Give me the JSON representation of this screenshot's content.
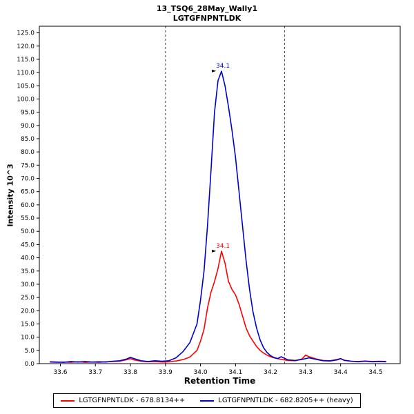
{
  "chart_data": {
    "type": "line",
    "title": "13_TSQ6_28May_Wally1",
    "subtitle": "LGTGFNPNTLDK",
    "xlabel": "Retention Time",
    "ylabel": "Intensity 10^3",
    "xlim": [
      33.54,
      34.57
    ],
    "ylim": [
      0,
      127.5
    ],
    "x_ticks": [
      33.6,
      33.7,
      33.8,
      33.9,
      34.0,
      34.1,
      34.2,
      34.3,
      34.4,
      34.5
    ],
    "y_ticks": [
      0,
      5,
      10,
      15,
      20,
      25,
      30,
      35,
      40,
      45,
      50,
      55,
      60,
      65,
      70,
      75,
      80,
      85,
      90,
      95,
      100,
      105,
      110,
      115,
      120,
      125
    ],
    "grid": false,
    "legend_position": "bottom",
    "peak_boundaries": [
      33.9,
      34.24
    ],
    "boundary_color": "#444444",
    "series": [
      {
        "name": "LGTGFNPNTLDK - 678.8134++",
        "color": "#ff0000",
        "annotation": {
          "label": "34.1",
          "x": 34.06,
          "y": 42.5
        },
        "points": [
          [
            33.57,
            0.6
          ],
          [
            33.59,
            0.5
          ],
          [
            33.61,
            0.6
          ],
          [
            33.63,
            0.5
          ],
          [
            33.65,
            0.7
          ],
          [
            33.67,
            0.5
          ],
          [
            33.69,
            0.6
          ],
          [
            33.71,
            0.5
          ],
          [
            33.73,
            0.7
          ],
          [
            33.75,
            0.8
          ],
          [
            33.77,
            0.9
          ],
          [
            33.79,
            1.5
          ],
          [
            33.8,
            1.9
          ],
          [
            33.81,
            1.4
          ],
          [
            33.83,
            0.9
          ],
          [
            33.85,
            0.7
          ],
          [
            33.87,
            0.8
          ],
          [
            33.89,
            0.6
          ],
          [
            33.91,
            0.7
          ],
          [
            33.93,
            1.0
          ],
          [
            33.95,
            1.5
          ],
          [
            33.97,
            2.5
          ],
          [
            33.99,
            5.0
          ],
          [
            34.0,
            8.5
          ],
          [
            34.01,
            13.0
          ],
          [
            34.02,
            21.0
          ],
          [
            34.03,
            27.0
          ],
          [
            34.04,
            31.0
          ],
          [
            34.05,
            36.0
          ],
          [
            34.06,
            42.5
          ],
          [
            34.07,
            38.0
          ],
          [
            34.08,
            31.0
          ],
          [
            34.09,
            28.0
          ],
          [
            34.1,
            26.0
          ],
          [
            34.11,
            22.5
          ],
          [
            34.12,
            18.0
          ],
          [
            34.13,
            13.5
          ],
          [
            34.14,
            10.5
          ],
          [
            34.15,
            8.5
          ],
          [
            34.16,
            6.5
          ],
          [
            34.17,
            5.0
          ],
          [
            34.18,
            4.0
          ],
          [
            34.19,
            3.2
          ],
          [
            34.2,
            2.6
          ],
          [
            34.21,
            2.2
          ],
          [
            34.22,
            1.9
          ],
          [
            34.23,
            1.6
          ],
          [
            34.24,
            1.4
          ],
          [
            34.25,
            1.2
          ],
          [
            34.27,
            1.1
          ],
          [
            34.29,
            1.8
          ],
          [
            34.3,
            3.2
          ],
          [
            34.31,
            2.6
          ],
          [
            34.33,
            1.8
          ],
          [
            34.35,
            1.2
          ],
          [
            34.37,
            1.1
          ],
          [
            34.39,
            1.6
          ],
          [
            34.4,
            1.9
          ],
          [
            34.41,
            1.2
          ],
          [
            34.43,
            0.9
          ],
          [
            34.45,
            0.8
          ],
          [
            34.47,
            1.0
          ],
          [
            34.49,
            0.8
          ],
          [
            34.51,
            0.9
          ],
          [
            34.53,
            0.8
          ]
        ]
      },
      {
        "name": "LGTGFNPNTLDK - 682.8205++ (heavy)",
        "color": "#0000cd",
        "annotation": {
          "label": "34.1",
          "x": 34.06,
          "y": 110.5
        },
        "points": [
          [
            33.57,
            0.7
          ],
          [
            33.59,
            0.6
          ],
          [
            33.61,
            0.5
          ],
          [
            33.63,
            0.8
          ],
          [
            33.65,
            0.6
          ],
          [
            33.67,
            0.8
          ],
          [
            33.69,
            0.6
          ],
          [
            33.71,
            0.7
          ],
          [
            33.73,
            0.6
          ],
          [
            33.75,
            0.9
          ],
          [
            33.77,
            1.1
          ],
          [
            33.79,
            1.8
          ],
          [
            33.8,
            2.4
          ],
          [
            33.81,
            1.9
          ],
          [
            33.83,
            1.1
          ],
          [
            33.85,
            0.8
          ],
          [
            33.87,
            1.1
          ],
          [
            33.89,
            0.9
          ],
          [
            33.91,
            1.1
          ],
          [
            33.93,
            2.2
          ],
          [
            33.95,
            4.5
          ],
          [
            33.97,
            8.0
          ],
          [
            33.99,
            15.0
          ],
          [
            34.0,
            24.0
          ],
          [
            34.01,
            35.0
          ],
          [
            34.02,
            52.0
          ],
          [
            34.03,
            73.0
          ],
          [
            34.04,
            95.0
          ],
          [
            34.05,
            107.0
          ],
          [
            34.06,
            110.5
          ],
          [
            34.07,
            105.0
          ],
          [
            34.08,
            97.0
          ],
          [
            34.09,
            88.0
          ],
          [
            34.1,
            78.0
          ],
          [
            34.11,
            65.0
          ],
          [
            34.12,
            52.0
          ],
          [
            34.13,
            39.0
          ],
          [
            34.14,
            28.0
          ],
          [
            34.15,
            19.5
          ],
          [
            34.16,
            13.5
          ],
          [
            34.17,
            9.0
          ],
          [
            34.18,
            6.0
          ],
          [
            34.19,
            4.2
          ],
          [
            34.2,
            3.0
          ],
          [
            34.21,
            2.3
          ],
          [
            34.22,
            1.9
          ],
          [
            34.23,
            2.6
          ],
          [
            34.24,
            2.0
          ],
          [
            34.25,
            1.4
          ],
          [
            34.27,
            1.2
          ],
          [
            34.29,
            1.6
          ],
          [
            34.31,
            2.2
          ],
          [
            34.33,
            1.6
          ],
          [
            34.35,
            1.1
          ],
          [
            34.37,
            1.0
          ],
          [
            34.39,
            1.4
          ],
          [
            34.4,
            1.9
          ],
          [
            34.41,
            1.3
          ],
          [
            34.43,
            0.9
          ],
          [
            34.45,
            0.7
          ],
          [
            34.47,
            0.9
          ],
          [
            34.49,
            0.7
          ],
          [
            34.51,
            0.8
          ],
          [
            34.53,
            0.7
          ]
        ]
      }
    ]
  }
}
